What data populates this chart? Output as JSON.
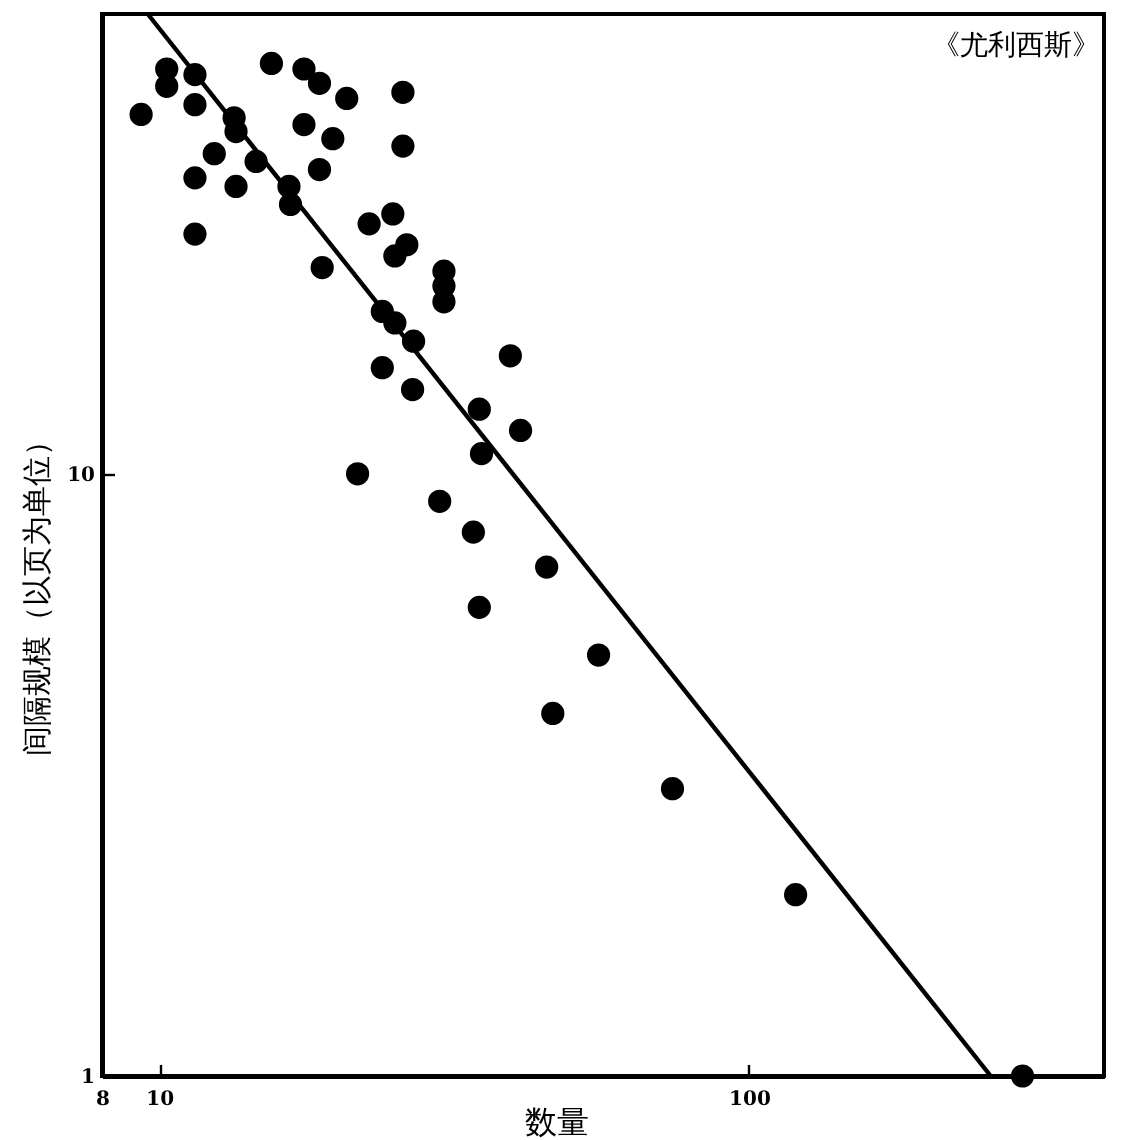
{
  "chart_data": {
    "type": "scatter",
    "title": "《尤利西斯》",
    "xlabel": "数量",
    "ylabel": "间隔规模（以页为单位）",
    "log": "xy",
    "xlim": [
      8,
      400
    ],
    "ylim": [
      1,
      58
    ],
    "xticks": [
      8,
      10,
      100
    ],
    "yticks": [
      1,
      10
    ],
    "grid": false,
    "series": [
      {
        "color": "#000000",
        "marker": "circle",
        "x": [
          9.32,
          10.3,
          10.3,
          11.5,
          11.5,
          11.5,
          11.5,
          12.4,
          13.4,
          13.5,
          13.5,
          14.6,
          15.5,
          16.6,
          16.7,
          17.6,
          18.7,
          17.6,
          19.7,
          18.7,
          20.8,
          25.9,
          25.9,
          18.9,
          22.7,
          24.9,
          25.1,
          26.3,
          30.4,
          30.4,
          30.4,
          23.9,
          25.1,
          27.0,
          23.9,
          26.9,
          39.4,
          34.9,
          41.0,
          35.2,
          21.7,
          29.9,
          34.1,
          45.4,
          34.9,
          55.6,
          46.5,
          74.2,
          120,
          291
        ],
        "values": [
          39.5,
          47,
          44,
          46,
          41,
          31,
          25,
          34,
          39,
          37,
          30,
          33,
          48,
          30,
          28,
          47,
          44.5,
          38,
          36,
          32,
          42,
          43,
          35,
          22,
          26,
          27,
          23,
          24,
          21.7,
          20.5,
          19.3,
          18.6,
          17.8,
          16.6,
          15,
          13.8,
          15.7,
          12.8,
          11.8,
          10.8,
          10,
          9,
          8,
          7,
          6,
          5,
          4,
          3,
          2,
          1
        ]
      },
      {
        "type": "line",
        "color": "#000000",
        "line_style": "solid",
        "x": [
          9.565,
          257
        ],
        "values": [
          58,
          1
        ]
      }
    ]
  }
}
